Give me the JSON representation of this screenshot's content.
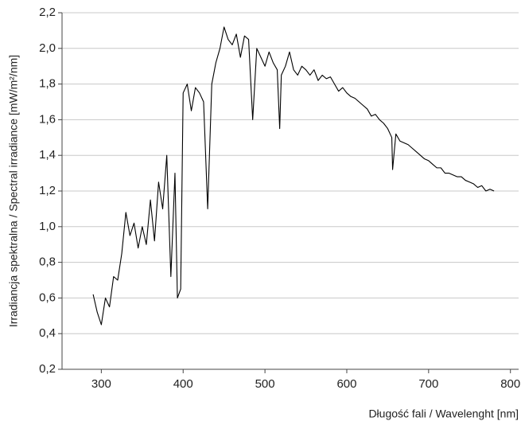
{
  "chart_data": {
    "type": "line",
    "xlabel": "Długość fali / Wavelenght [nm]",
    "ylabel": "Irradiancja spektralna / Spectral irradiance [mW/m²/nm]",
    "x": [
      290,
      295,
      300,
      305,
      310,
      315,
      320,
      325,
      330,
      335,
      340,
      345,
      350,
      355,
      360,
      365,
      370,
      375,
      380,
      385,
      390,
      393,
      397,
      400,
      405,
      410,
      415,
      420,
      425,
      430,
      435,
      440,
      445,
      450,
      455,
      460,
      465,
      470,
      475,
      480,
      485,
      490,
      495,
      500,
      505,
      510,
      515,
      518,
      520,
      525,
      530,
      535,
      540,
      545,
      550,
      555,
      560,
      565,
      570,
      575,
      580,
      585,
      590,
      595,
      600,
      605,
      610,
      615,
      620,
      625,
      630,
      635,
      640,
      645,
      650,
      655,
      656,
      660,
      665,
      670,
      675,
      680,
      685,
      690,
      695,
      700,
      705,
      710,
      715,
      720,
      725,
      730,
      735,
      740,
      745,
      750,
      755,
      760,
      765,
      770,
      775,
      780
    ],
    "series": [
      {
        "color": "#000000",
        "values": [
          0.62,
          0.52,
          0.45,
          0.6,
          0.55,
          0.72,
          0.7,
          0.85,
          1.08,
          0.95,
          1.02,
          0.88,
          1.0,
          0.9,
          1.15,
          0.92,
          1.25,
          1.1,
          1.4,
          0.72,
          1.3,
          0.6,
          0.65,
          1.75,
          1.8,
          1.65,
          1.78,
          1.75,
          1.7,
          1.1,
          1.8,
          1.92,
          2.0,
          2.12,
          2.05,
          2.02,
          2.08,
          1.95,
          2.07,
          2.05,
          1.6,
          2.0,
          1.95,
          1.9,
          1.98,
          1.92,
          1.88,
          1.55,
          1.85,
          1.9,
          1.98,
          1.88,
          1.85,
          1.9,
          1.88,
          1.85,
          1.88,
          1.82,
          1.85,
          1.83,
          1.84,
          1.8,
          1.76,
          1.78,
          1.75,
          1.73,
          1.72,
          1.7,
          1.68,
          1.66,
          1.62,
          1.63,
          1.6,
          1.58,
          1.55,
          1.5,
          1.32,
          1.52,
          1.48,
          1.47,
          1.46,
          1.44,
          1.42,
          1.4,
          1.38,
          1.37,
          1.35,
          1.33,
          1.33,
          1.3,
          1.3,
          1.29,
          1.28,
          1.28,
          1.26,
          1.25,
          1.24,
          1.22,
          1.23,
          1.2,
          1.21,
          1.2
        ]
      }
    ],
    "xlim": [
      252,
      810
    ],
    "xticks": [
      300,
      400,
      500,
      600,
      700,
      800
    ],
    "ylim": [
      0.2,
      2.2
    ],
    "yticks": [
      {
        "value": 0.2,
        "label": "0,2"
      },
      {
        "value": 0.4,
        "label": "0,4"
      },
      {
        "value": 0.6,
        "label": "0,6"
      },
      {
        "value": 0.8,
        "label": "0,8"
      },
      {
        "value": 1.0,
        "label": "1,0"
      },
      {
        "value": 1.2,
        "label": "1,2"
      },
      {
        "value": 1.4,
        "label": "1,4"
      },
      {
        "value": 1.6,
        "label": "1,6"
      },
      {
        "value": 1.8,
        "label": "1,8"
      },
      {
        "value": 2.0,
        "label": "2,0"
      },
      {
        "value": 2.2,
        "label": "2,2"
      }
    ],
    "grid": true
  }
}
